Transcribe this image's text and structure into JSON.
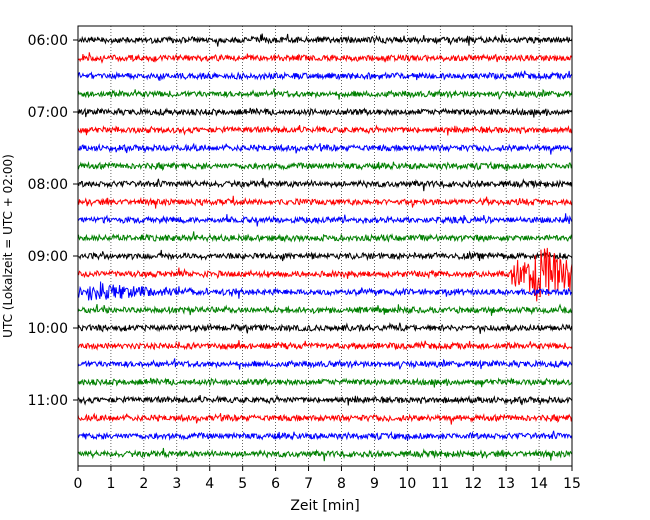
{
  "chart_data": {
    "type": "line",
    "title": "",
    "xlabel": "Zeit  [min]",
    "ylabel": "UTC (Lokalzeit = UTC + 02:00)",
    "xlim": [
      0,
      15
    ],
    "x_ticks": [
      "0",
      "1",
      "2",
      "3",
      "4",
      "5",
      "6",
      "7",
      "8",
      "9",
      "10",
      "11",
      "12",
      "13",
      "14",
      "15"
    ],
    "y_ticks": [
      "06:00",
      "07:00",
      "08:00",
      "09:00",
      "10:00",
      "11:00"
    ],
    "grid": "vertical dotted",
    "trace_interval_minutes": 15,
    "start_time": "06:00",
    "color_cycle": [
      "#000000",
      "#ff0000",
      "#0000ff",
      "#008000"
    ],
    "traces": [
      {
        "time": "06:00",
        "color": "black"
      },
      {
        "time": "06:15",
        "color": "red"
      },
      {
        "time": "06:30",
        "color": "blue"
      },
      {
        "time": "06:45",
        "color": "green"
      },
      {
        "time": "07:00",
        "color": "black"
      },
      {
        "time": "07:15",
        "color": "red"
      },
      {
        "time": "07:30",
        "color": "blue"
      },
      {
        "time": "07:45",
        "color": "green"
      },
      {
        "time": "08:00",
        "color": "black"
      },
      {
        "time": "08:15",
        "color": "red"
      },
      {
        "time": "08:30",
        "color": "blue"
      },
      {
        "time": "08:45",
        "color": "green"
      },
      {
        "time": "09:00",
        "color": "black"
      },
      {
        "time": "09:15",
        "color": "red",
        "events": [
          {
            "start_min": 13.1,
            "end_min": 15.0,
            "peak_min": 14.1,
            "amplitude": "large"
          }
        ]
      },
      {
        "time": "09:30",
        "color": "blue",
        "events": [
          {
            "start_min": 0.0,
            "end_min": 4.0,
            "peak_min": 0.4,
            "amplitude": "medium"
          }
        ]
      },
      {
        "time": "09:45",
        "color": "green"
      },
      {
        "time": "10:00",
        "color": "black"
      },
      {
        "time": "10:15",
        "color": "red"
      },
      {
        "time": "10:30",
        "color": "blue"
      },
      {
        "time": "10:45",
        "color": "green"
      },
      {
        "time": "11:00",
        "color": "black"
      },
      {
        "time": "11:15",
        "color": "red"
      },
      {
        "time": "11:30",
        "color": "blue"
      },
      {
        "time": "11:45",
        "color": "green"
      }
    ]
  }
}
